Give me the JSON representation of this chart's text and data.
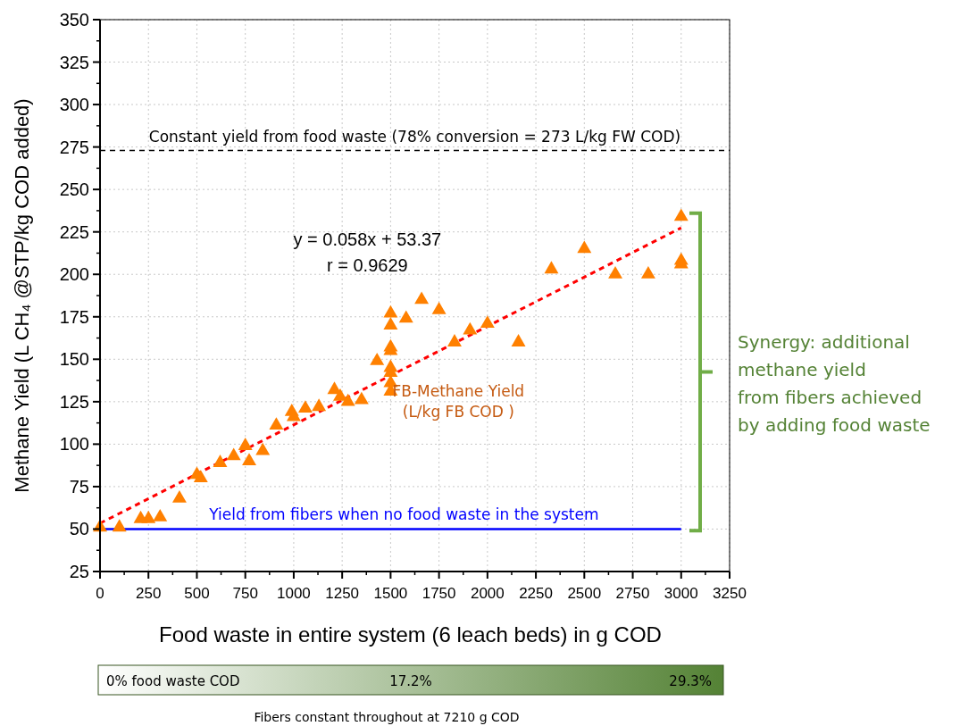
{
  "chart_data": {
    "type": "scatter",
    "xlabel": "Food waste in entire system (6 leach beds) in g COD",
    "ylabel": "Methane Yield (L CH₄ @STP/kg COD added)",
    "xlim": [
      0,
      3250
    ],
    "xticks": [
      0,
      250,
      500,
      750,
      1000,
      1250,
      1500,
      1750,
      2000,
      2250,
      2500,
      2750,
      3000,
      3250
    ],
    "ylim": [
      25,
      350
    ],
    "yticks": [
      25,
      50,
      75,
      100,
      125,
      150,
      175,
      200,
      225,
      250,
      275,
      300,
      325,
      350
    ],
    "grid": true,
    "legend": false,
    "series": [
      {
        "name": "FB-Methane Yield\n(L/kg FB COD )",
        "type": "scatter",
        "color": "#ff8000",
        "marker": "triangle",
        "x": [
          0,
          100,
          210,
          250,
          310,
          410,
          500,
          520,
          620,
          690,
          750,
          770,
          840,
          910,
          990,
          1000,
          1060,
          1130,
          1210,
          1240,
          1280,
          1350,
          1430,
          1500,
          1500,
          1500,
          1500,
          1500,
          1500,
          1500,
          1500,
          1580,
          1660,
          1750,
          1830,
          1910,
          2000,
          2160,
          2330,
          2500,
          2660,
          2830,
          3000,
          3000,
          3000
        ],
        "values": [
          51,
          51,
          56,
          56,
          57,
          68,
          82,
          80,
          89,
          93,
          99,
          90,
          96,
          111,
          119,
          116,
          121,
          122,
          132,
          128,
          125,
          126,
          149,
          177,
          170,
          157,
          155,
          145,
          142,
          136,
          131,
          174,
          185,
          179,
          160,
          167,
          171,
          160,
          203,
          215,
          200,
          200,
          234,
          208,
          206
        ]
      },
      {
        "type": "line",
        "color": "#ff0000",
        "line_style": "dashed",
        "x": [
          0,
          3000
        ],
        "values": [
          53.4,
          227.4
        ]
      },
      {
        "name": "Yield from fibers when no food waste in the system",
        "type": "line",
        "color": "#0000ff",
        "line_style": "solid",
        "x": [
          0,
          3000
        ],
        "values": [
          50,
          50
        ]
      }
    ],
    "ref_lines": [
      {
        "axis": "y",
        "value": 273,
        "label": "Constant yield from food waste (78% conversion = 273 L/kg FW COD)",
        "color": "#000000",
        "line_style": "dashed"
      }
    ],
    "annotations": [
      "y = 0.058x + 53.37",
      "r = 0.9629",
      "Synergy: additional\nmethane yield\nfrom fibers achieved\nby adding food waste",
      "0% food waste COD",
      "17.2%",
      "29.3%",
      "Fibers constant throughout at 7210 g COD"
    ]
  }
}
